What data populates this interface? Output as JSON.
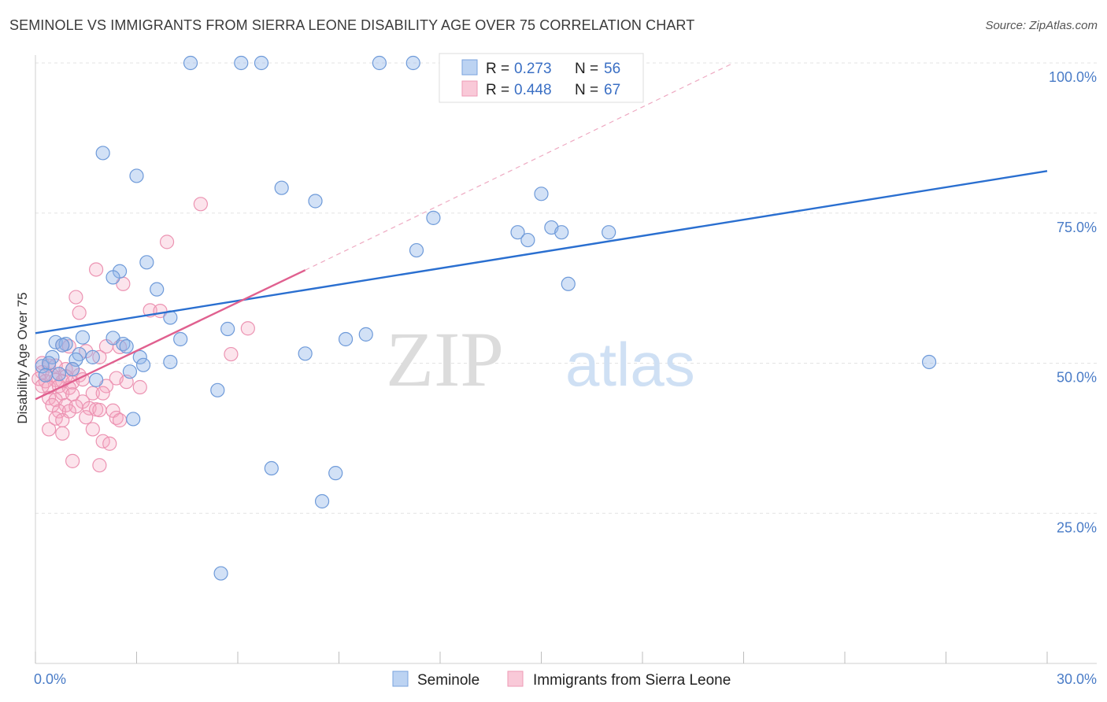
{
  "title": "SEMINOLE VS IMMIGRANTS FROM SIERRA LEONE DISABILITY AGE OVER 75 CORRELATION CHART",
  "source": "Source: ZipAtlas.com",
  "watermark": {
    "zip": "ZIP",
    "atlas": "atlas"
  },
  "legend": {
    "r_label": "R =",
    "n_label": "N =",
    "rows": [
      {
        "r": "0.273",
        "n": "56"
      },
      {
        "r": "0.448",
        "n": "67"
      }
    ]
  },
  "bottom_legend": [
    "Seminole",
    "Immigrants from Sierra Leone"
  ],
  "chart_data": {
    "type": "scatter",
    "title": "SEMINOLE VS IMMIGRANTS FROM SIERRA LEONE DISABILITY AGE OVER 75 CORRELATION CHART",
    "xlabel": "",
    "ylabel": "Disability Age Over 75",
    "xlim": [
      0,
      30
    ],
    "ylim": [
      0,
      102
    ],
    "x_ticks": [
      "0.0%",
      "30.0%"
    ],
    "y_ticks": [
      {
        "value": 25,
        "label": "25.0%"
      },
      {
        "value": 50,
        "label": "50.0%"
      },
      {
        "value": 75,
        "label": "75.0%"
      },
      {
        "value": 100,
        "label": "100.0%"
      }
    ],
    "grid": true,
    "legend_position": "top-center",
    "colors": {
      "seminole": "#8fb3e8",
      "sierra_leone": "#f4a7c0",
      "seminole_line": "#2a6fd0",
      "sierra_line": "#e0608f"
    },
    "series": [
      {
        "name": "Seminole",
        "trend": {
          "x": [
            0,
            30
          ],
          "y": [
            55.0,
            82.0
          ]
        },
        "points": [
          [
            4.6,
            100
          ],
          [
            6.1,
            100
          ],
          [
            6.7,
            100
          ],
          [
            10.2,
            100
          ],
          [
            11.2,
            100
          ],
          [
            2.0,
            85.0
          ],
          [
            3.0,
            81.2
          ],
          [
            7.3,
            79.2
          ],
          [
            8.3,
            77.0
          ],
          [
            15.0,
            78.2
          ],
          [
            11.8,
            74.2
          ],
          [
            14.3,
            71.8
          ],
          [
            14.6,
            70.5
          ],
          [
            15.3,
            72.6
          ],
          [
            15.6,
            71.8
          ],
          [
            17.0,
            71.8
          ],
          [
            11.3,
            68.8
          ],
          [
            3.3,
            66.8
          ],
          [
            2.5,
            65.3
          ],
          [
            2.3,
            64.3
          ],
          [
            3.6,
            62.3
          ],
          [
            15.8,
            63.2
          ],
          [
            4.0,
            57.6
          ],
          [
            5.7,
            55.7
          ],
          [
            9.2,
            54.0
          ],
          [
            9.8,
            54.8
          ],
          [
            4.3,
            54.0
          ],
          [
            0.6,
            53.5
          ],
          [
            0.9,
            53.2
          ],
          [
            0.8,
            53.0
          ],
          [
            1.4,
            54.3
          ],
          [
            2.3,
            54.2
          ],
          [
            2.6,
            53.2
          ],
          [
            2.7,
            52.8
          ],
          [
            1.3,
            51.5
          ],
          [
            1.7,
            51.0
          ],
          [
            1.2,
            50.6
          ],
          [
            0.5,
            51.0
          ],
          [
            3.1,
            51.0
          ],
          [
            3.2,
            49.7
          ],
          [
            4.0,
            50.2
          ],
          [
            8.0,
            51.6
          ],
          [
            0.2,
            49.5
          ],
          [
            0.4,
            50.0
          ],
          [
            1.1,
            49.0
          ],
          [
            26.5,
            50.2
          ],
          [
            0.3,
            48.0
          ],
          [
            0.7,
            48.2
          ],
          [
            1.8,
            47.2
          ],
          [
            2.8,
            48.6
          ],
          [
            5.4,
            45.5
          ],
          [
            2.9,
            40.7
          ],
          [
            7.0,
            32.5
          ],
          [
            8.9,
            31.7
          ],
          [
            8.5,
            27.0
          ],
          [
            5.5,
            15.0
          ]
        ]
      },
      {
        "name": "Immigrants from Sierra Leone",
        "trend": {
          "x": [
            0,
            8
          ],
          "y": [
            44.0,
            65.5
          ]
        },
        "trend_extension": {
          "x": [
            8,
            20.7
          ],
          "y": [
            65.5,
            100.0
          ]
        },
        "points": [
          [
            4.9,
            76.5
          ],
          [
            3.9,
            70.2
          ],
          [
            1.8,
            65.6
          ],
          [
            2.6,
            63.2
          ],
          [
            1.2,
            61.0
          ],
          [
            1.3,
            58.4
          ],
          [
            3.4,
            58.8
          ],
          [
            3.7,
            58.7
          ],
          [
            6.3,
            55.8
          ],
          [
            5.8,
            51.5
          ],
          [
            2.1,
            52.8
          ],
          [
            2.5,
            52.7
          ],
          [
            0.8,
            53.0
          ],
          [
            1.0,
            52.8
          ],
          [
            1.5,
            52.0
          ],
          [
            1.9,
            51.0
          ],
          [
            0.2,
            50.0
          ],
          [
            0.4,
            49.6
          ],
          [
            0.6,
            49.6
          ],
          [
            0.9,
            49.0
          ],
          [
            1.1,
            49.0
          ],
          [
            0.2,
            48.5
          ],
          [
            0.5,
            48.0
          ],
          [
            0.9,
            47.8
          ],
          [
            1.3,
            48.0
          ],
          [
            0.1,
            47.4
          ],
          [
            0.3,
            47.0
          ],
          [
            0.6,
            47.2
          ],
          [
            0.8,
            47.0
          ],
          [
            1.1,
            46.8
          ],
          [
            1.4,
            47.3
          ],
          [
            2.4,
            47.5
          ],
          [
            2.7,
            46.9
          ],
          [
            0.2,
            46.2
          ],
          [
            0.4,
            46.0
          ],
          [
            0.7,
            46.2
          ],
          [
            1.0,
            45.9
          ],
          [
            2.1,
            46.2
          ],
          [
            3.1,
            46.0
          ],
          [
            0.8,
            45.0
          ],
          [
            1.1,
            44.8
          ],
          [
            1.7,
            45.0
          ],
          [
            2.0,
            45.0
          ],
          [
            0.4,
            44.2
          ],
          [
            0.6,
            43.9
          ],
          [
            1.4,
            43.6
          ],
          [
            0.5,
            43.0
          ],
          [
            0.9,
            43.0
          ],
          [
            1.2,
            42.8
          ],
          [
            1.6,
            42.5
          ],
          [
            0.7,
            42.0
          ],
          [
            1.0,
            42.0
          ],
          [
            1.8,
            42.3
          ],
          [
            1.9,
            42.2
          ],
          [
            2.3,
            42.1
          ],
          [
            0.6,
            40.8
          ],
          [
            0.8,
            40.5
          ],
          [
            1.5,
            41.0
          ],
          [
            2.4,
            40.9
          ],
          [
            2.5,
            40.5
          ],
          [
            0.4,
            39.0
          ],
          [
            1.7,
            39.0
          ],
          [
            2.0,
            37.0
          ],
          [
            1.1,
            33.7
          ],
          [
            1.9,
            33.0
          ],
          [
            2.2,
            36.6
          ],
          [
            0.8,
            38.3
          ]
        ]
      }
    ]
  }
}
